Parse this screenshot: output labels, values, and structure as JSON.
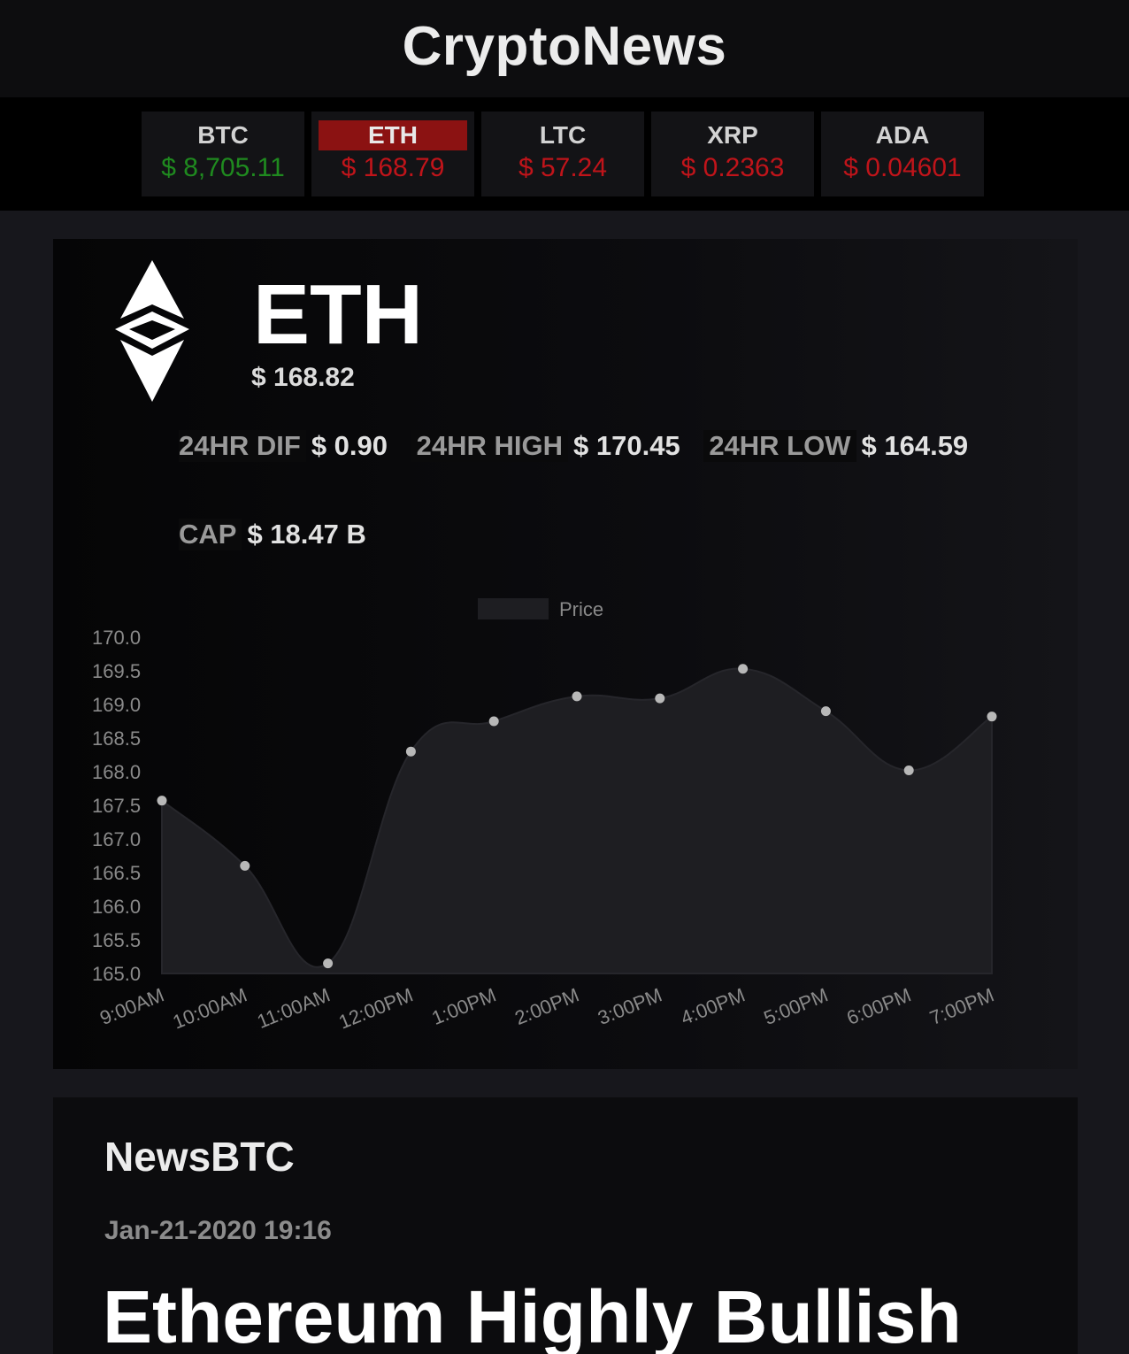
{
  "header": {
    "title": "CryptoNews"
  },
  "ticker": [
    {
      "symbol": "BTC",
      "price": "$ 8,705.11",
      "trend": "up",
      "active": false
    },
    {
      "symbol": "ETH",
      "price": "$ 168.79",
      "trend": "down",
      "active": true
    },
    {
      "symbol": "LTC",
      "price": "$ 57.24",
      "trend": "down",
      "active": false
    },
    {
      "symbol": "XRP",
      "price": "$ 0.2363",
      "trend": "down",
      "active": false
    },
    {
      "symbol": "ADA",
      "price": "$ 0.04601",
      "trend": "down",
      "active": false
    }
  ],
  "coin": {
    "symbol": "ETH",
    "price": "$ 168.82",
    "logo_icon": "ethereum-classic-icon",
    "stats": {
      "dif_label": "24HR DIF",
      "dif_value": "$ 0.90",
      "high_label": "24HR HIGH",
      "high_value": "$ 170.45",
      "low_label": "24HR LOW",
      "low_value": "$ 164.59",
      "cap_label": "CAP",
      "cap_value": "$ 18.47 B"
    }
  },
  "chart_data": {
    "type": "area",
    "legend": "Price",
    "legend_position": "top-center",
    "categories": [
      "9:00AM",
      "10:00AM",
      "11:00AM",
      "12:00PM",
      "1:00PM",
      "2:00PM",
      "3:00PM",
      "4:00PM",
      "5:00PM",
      "6:00PM",
      "7:00PM"
    ],
    "series": [
      {
        "name": "Price",
        "values": [
          167.57,
          166.6,
          165.15,
          168.3,
          168.75,
          169.12,
          169.09,
          169.53,
          168.9,
          168.02,
          168.82
        ]
      }
    ],
    "ylim": [
      165.0,
      170.0
    ],
    "yticks": [
      "170.0",
      "169.5",
      "169.0",
      "168.5",
      "168.0",
      "167.5",
      "167.0",
      "166.5",
      "166.0",
      "165.5",
      "165.0"
    ],
    "grid": false,
    "colors": {
      "fill": "#1e1e22",
      "point": "#b8b8b8",
      "line": "#26262b"
    }
  },
  "news": {
    "source": "NewsBTC",
    "date": "Jan-21-2020 19:16",
    "headline": "Ethereum Highly Bullish"
  }
}
